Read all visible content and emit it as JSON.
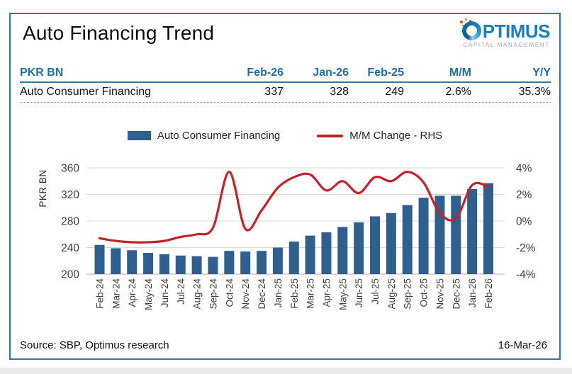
{
  "page": {
    "title": "Auto Financing Trend",
    "logo": {
      "text": "OPTIMUS",
      "wordmark_rest": "PTIMUS",
      "tagline": "CAPITAL MANAGEMENT"
    },
    "table": {
      "unit_header": "PKR BN",
      "columns": [
        "Feb-26",
        "Jan-26",
        "Feb-25",
        "M/M",
        "Y/Y"
      ],
      "row": {
        "label": "Auto Consumer Financing",
        "values": [
          "337",
          "328",
          "249",
          "2.6%",
          "35.3%"
        ]
      }
    },
    "footer": {
      "source": "Source: SBP, Optimus research",
      "date": "16-Mar-26"
    }
  },
  "colors": {
    "accent_blue": "#1E6FA6",
    "border_blue": "#2E7CA6",
    "bar_blue": "#2F5F8E",
    "line_red": "#C4222A",
    "gridline": "#D9D9D9",
    "axis_line": "#BFBFBF",
    "tick_text": "#404040"
  },
  "chart_data": {
    "type": "bar+line",
    "title": "",
    "categories": [
      "Feb-24",
      "Mar-24",
      "Apr-24",
      "May-24",
      "Jun-24",
      "Jul-24",
      "Aug-24",
      "Sep-24",
      "Oct-24",
      "Nov-24",
      "Dec-24",
      "Jan-25",
      "Feb-25",
      "Mar-25",
      "Apr-25",
      "May-25",
      "Jun-25",
      "Jul-25",
      "Aug-25",
      "Sep-25",
      "Oct-25",
      "Nov-25",
      "Dec-25",
      "Jan-26",
      "Feb-26"
    ],
    "series": [
      {
        "name": "Auto Consumer Financing",
        "type": "bar",
        "axis": "left",
        "color": "#2F5F8E",
        "values": [
          244,
          239,
          236,
          232,
          230,
          228,
          227,
          226,
          235,
          234,
          235,
          240,
          249,
          258,
          263,
          271,
          278,
          287,
          292,
          304,
          315,
          318,
          318,
          328,
          337
        ]
      },
      {
        "name": "M/M Change - RHS",
        "type": "line",
        "axis": "right",
        "color": "#C4222A",
        "values": [
          -1.3,
          -1.5,
          -1.6,
          -1.6,
          -1.5,
          -1.2,
          -1.0,
          -0.5,
          3.7,
          -0.6,
          0.8,
          2.5,
          3.3,
          3.5,
          2.3,
          3.0,
          2.1,
          3.3,
          3.0,
          3.7,
          2.9,
          0.6,
          0.2,
          2.7,
          2.6
        ]
      }
    ],
    "left_axis": {
      "label": "PKR BN",
      "min": 200,
      "max": 360,
      "ticks": [
        360,
        320,
        280,
        240,
        200
      ]
    },
    "right_axis": {
      "min": -4,
      "max": 4,
      "tick_labels": [
        "4%",
        "2%",
        "0%",
        "-2%",
        "-4%"
      ]
    },
    "grid": true,
    "legend_position": "top"
  }
}
